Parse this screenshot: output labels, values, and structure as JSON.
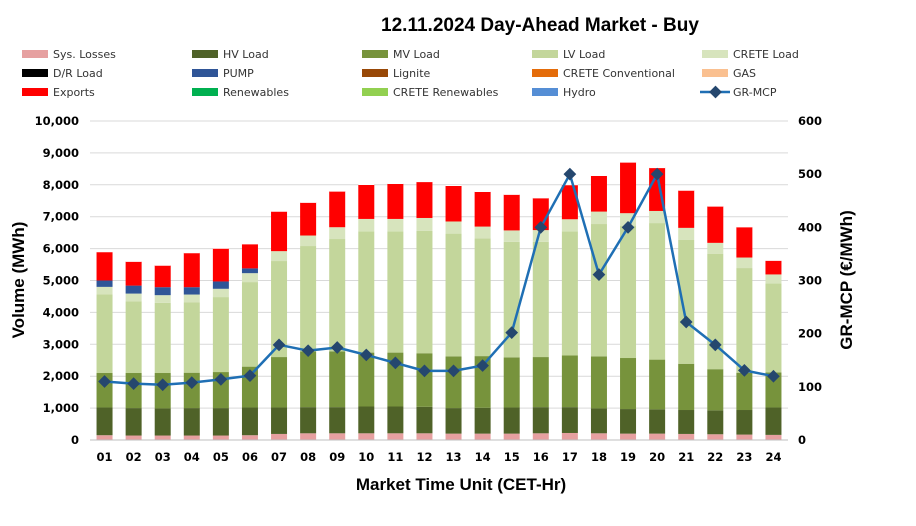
{
  "chart_data": {
    "type": "bar",
    "title": "12.11.2024  Day-Ahead Market - Buy",
    "xlabel": "Market Time Unit (CET-Hr)",
    "ylabel": "Volume (MWh)",
    "y2label": "GR-MCP (€/MWh)",
    "ylim": [
      0,
      10000
    ],
    "y2lim": [
      0,
      600
    ],
    "y_ticks": [
      "0",
      "1,000",
      "2,000",
      "3,000",
      "4,000",
      "5,000",
      "6,000",
      "7,000",
      "8,000",
      "9,000",
      "10,000"
    ],
    "y2_ticks": [
      "0",
      "100",
      "200",
      "300",
      "400",
      "500",
      "600"
    ],
    "categories": [
      "01",
      "02",
      "03",
      "04",
      "05",
      "06",
      "07",
      "08",
      "09",
      "10",
      "11",
      "12",
      "13",
      "14",
      "15",
      "16",
      "17",
      "18",
      "19",
      "20",
      "21",
      "22",
      "23",
      "24"
    ],
    "legend": [
      {
        "name": "Sys. Losses",
        "color": "#E6A0A0",
        "kind": "box"
      },
      {
        "name": "HV Load",
        "color": "#4F6228",
        "kind": "box"
      },
      {
        "name": "MV Load",
        "color": "#77933C",
        "kind": "box"
      },
      {
        "name": "LV Load",
        "color": "#C3D69B",
        "kind": "box"
      },
      {
        "name": "CRETE Load",
        "color": "#D7E4BD",
        "kind": "box"
      },
      {
        "name": "D/R Load",
        "color": "#000000",
        "kind": "box"
      },
      {
        "name": "PUMP",
        "color": "#2F5597",
        "kind": "box"
      },
      {
        "name": "Lignite",
        "color": "#984807",
        "kind": "box"
      },
      {
        "name": "CRETE Conventional",
        "color": "#E46C0A",
        "kind": "box"
      },
      {
        "name": "GAS",
        "color": "#FAC090",
        "kind": "box"
      },
      {
        "name": "Exports",
        "color": "#FF0000",
        "kind": "box"
      },
      {
        "name": "Renewables",
        "color": "#00B050",
        "kind": "box"
      },
      {
        "name": "CRETE Renewables",
        "color": "#92D050",
        "kind": "box"
      },
      {
        "name": "Hydro",
        "color": "#558ED5",
        "kind": "box"
      },
      {
        "name": "GR-MCP",
        "color": "#1F6FB4",
        "kind": "line"
      }
    ],
    "series": [
      {
        "name": "Sys. Losses",
        "color": "#E6A0A0",
        "values": [
          150,
          140,
          140,
          140,
          140,
          150,
          190,
          210,
          210,
          210,
          210,
          210,
          200,
          200,
          200,
          210,
          220,
          210,
          200,
          200,
          190,
          180,
          170,
          160
        ]
      },
      {
        "name": "HV Load",
        "color": "#4F6228",
        "values": [
          870,
          860,
          850,
          860,
          860,
          870,
          830,
          820,
          820,
          840,
          840,
          830,
          800,
          810,
          820,
          820,
          810,
          780,
          770,
          760,
          750,
          750,
          770,
          860
        ]
      },
      {
        "name": "MV Load",
        "color": "#77933C",
        "values": [
          1080,
          1100,
          1110,
          1110,
          1130,
          1280,
          1580,
          1750,
          1750,
          1690,
          1690,
          1680,
          1620,
          1620,
          1570,
          1570,
          1620,
          1630,
          1600,
          1560,
          1450,
          1290,
          1170,
          1100
        ]
      },
      {
        "name": "LV Load",
        "color": "#C3D69B",
        "values": [
          2470,
          2250,
          2200,
          2200,
          2350,
          2650,
          3010,
          3300,
          3520,
          3800,
          3800,
          3840,
          3850,
          3690,
          3620,
          3610,
          3890,
          4150,
          4150,
          4280,
          3880,
          3620,
          3280,
          2790
        ]
      },
      {
        "name": "CRETE Load",
        "color": "#D7E4BD",
        "values": [
          230,
          240,
          240,
          250,
          260,
          280,
          310,
          330,
          370,
          390,
          390,
          400,
          380,
          370,
          360,
          370,
          380,
          390,
          390,
          380,
          380,
          340,
          330,
          280
        ]
      },
      {
        "name": "PUMP",
        "color": "#2F5597",
        "values": [
          200,
          250,
          250,
          230,
          230,
          150,
          0,
          0,
          0,
          0,
          0,
          0,
          0,
          0,
          0,
          0,
          0,
          0,
          0,
          0,
          0,
          0,
          0,
          0
        ]
      },
      {
        "name": "Exports",
        "color": "#FF0000",
        "values": [
          900,
          760,
          690,
          1080,
          1040,
          770,
          1250,
          1040,
          1130,
          1080,
          1110,
          1140,
          1130,
          1100,
          1130,
          1010,
          1080,
          1130,
          1600,
          1360,
          1180,
          1150,
          960,
          440
        ]
      }
    ],
    "line": {
      "name": "GR-MCP",
      "color": "#1F6FB4",
      "values": [
        110,
        106,
        104,
        108,
        114,
        121,
        179,
        168,
        174,
        160,
        145,
        130,
        130,
        140,
        202,
        400,
        500,
        311,
        400,
        500,
        222,
        179,
        131,
        120
      ]
    }
  }
}
